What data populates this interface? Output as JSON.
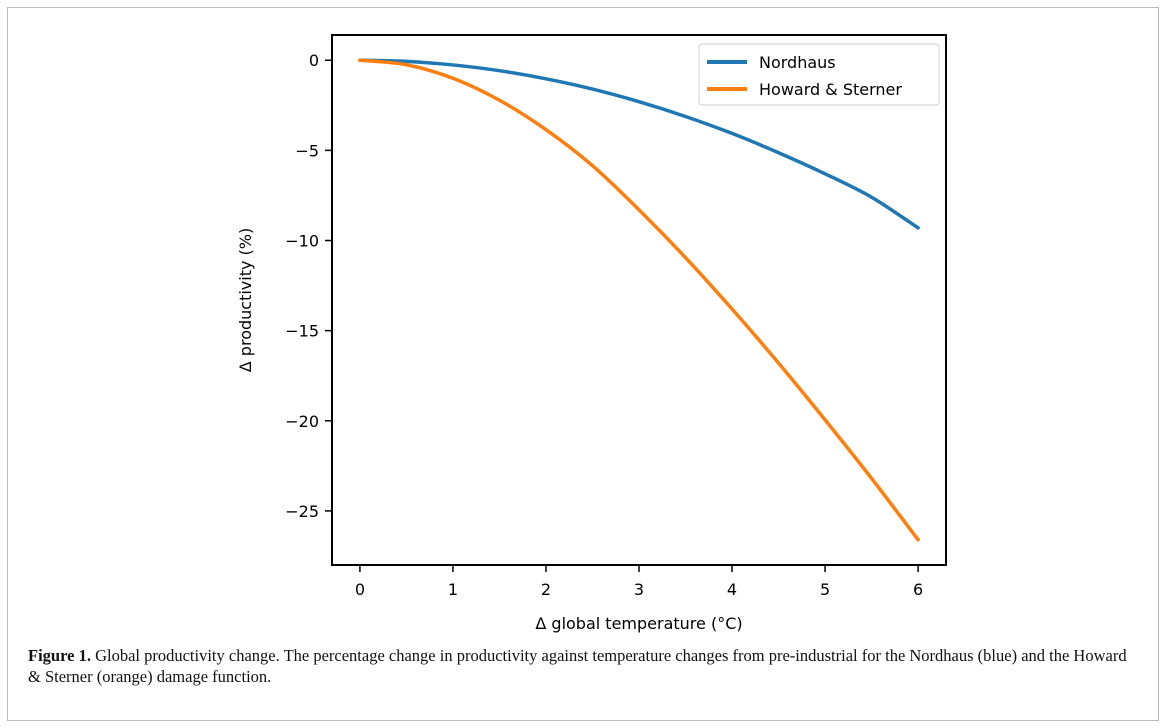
{
  "chart_data": {
    "type": "line",
    "title": "",
    "xlabel": "Δ global temperature (°C)",
    "ylabel": "Δ productivity (%)",
    "xlim": [
      -0.3,
      6.3
    ],
    "ylim": [
      -28,
      1.4
    ],
    "xticks": [
      0,
      1,
      2,
      3,
      4,
      5,
      6
    ],
    "xtick_labels": [
      "0",
      "1",
      "2",
      "3",
      "4",
      "5",
      "6"
    ],
    "yticks": [
      0,
      -5,
      -10,
      -15,
      -20,
      -25
    ],
    "ytick_labels": [
      "0",
      "−5",
      "−10",
      "−15",
      "−20",
      "−25"
    ],
    "grid": false,
    "legend_position": "top-right",
    "series": [
      {
        "name": "Nordhaus",
        "color": "#1f77b4",
        "x": [
          0,
          0.5,
          1,
          1.5,
          2,
          2.5,
          3,
          3.5,
          4,
          4.5,
          5,
          5.5,
          6
        ],
        "y": [
          0,
          -0.06,
          -0.26,
          -0.58,
          -1.03,
          -1.6,
          -2.3,
          -3.12,
          -4.06,
          -5.13,
          -6.3,
          -7.6,
          -9.3
        ]
      },
      {
        "name": "Howard & Sterner",
        "color": "#ff7f0e",
        "x": [
          0,
          0.5,
          1,
          1.5,
          2,
          2.5,
          3,
          3.5,
          4,
          4.5,
          5,
          5.5,
          6
        ],
        "y": [
          0,
          -0.25,
          -1.0,
          -2.22,
          -3.85,
          -5.85,
          -8.3,
          -10.95,
          -13.8,
          -16.8,
          -19.95,
          -23.2,
          -26.6
        ]
      }
    ]
  },
  "caption": {
    "label": "Figure 1.",
    "text": " Global productivity change. The percentage change in productivity against temperature changes from pre-industrial for the Nordhaus (blue) and the Howard & Sterner (orange) damage function."
  }
}
